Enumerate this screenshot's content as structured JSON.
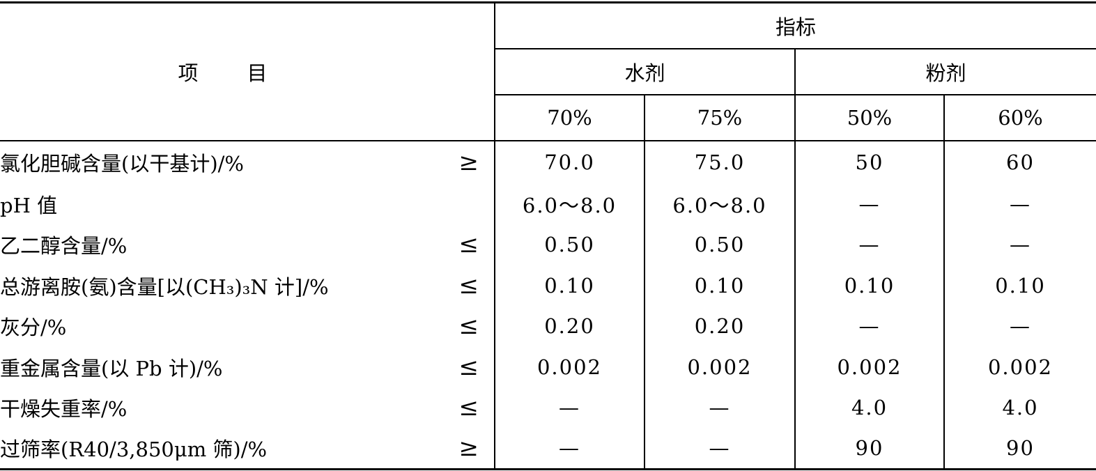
{
  "header": {
    "item": "项目",
    "indicator": "指标",
    "groups": [
      "水剂",
      "粉剂"
    ],
    "concentrations": [
      "70%",
      "75%",
      "50%",
      "60%"
    ]
  },
  "rows": [
    {
      "item": "氯化胆碱含量(以干基计)/%",
      "symbol": "≥",
      "values": [
        "70.0",
        "75.0",
        "50",
        "60"
      ]
    },
    {
      "item": "pH 值",
      "symbol": "",
      "values": [
        "6.0～8.0",
        "6.0～8.0",
        "—",
        "—"
      ]
    },
    {
      "item": "乙二醇含量/%",
      "symbol": "≤",
      "values": [
        "0.50",
        "0.50",
        "—",
        "—"
      ]
    },
    {
      "item": "总游离胺(氨)含量[以(CH₃)₃N 计]/%",
      "symbol": "≤",
      "values": [
        "0.10",
        "0.10",
        "0.10",
        "0.10"
      ]
    },
    {
      "item": "灰分/%",
      "symbol": "≤",
      "values": [
        "0.20",
        "0.20",
        "—",
        "—"
      ]
    },
    {
      "item": "重金属含量(以 Pb 计)/%",
      "symbol": "≤",
      "values": [
        "0.002",
        "0.002",
        "0.002",
        "0.002"
      ]
    },
    {
      "item": "干燥失重率/%",
      "symbol": "≤",
      "values": [
        "—",
        "—",
        "4.0",
        "4.0"
      ]
    },
    {
      "item": "过筛率(R40/3,850μm 筛)/%",
      "symbol": "≥",
      "values": [
        "—",
        "—",
        "90",
        "90"
      ]
    }
  ]
}
